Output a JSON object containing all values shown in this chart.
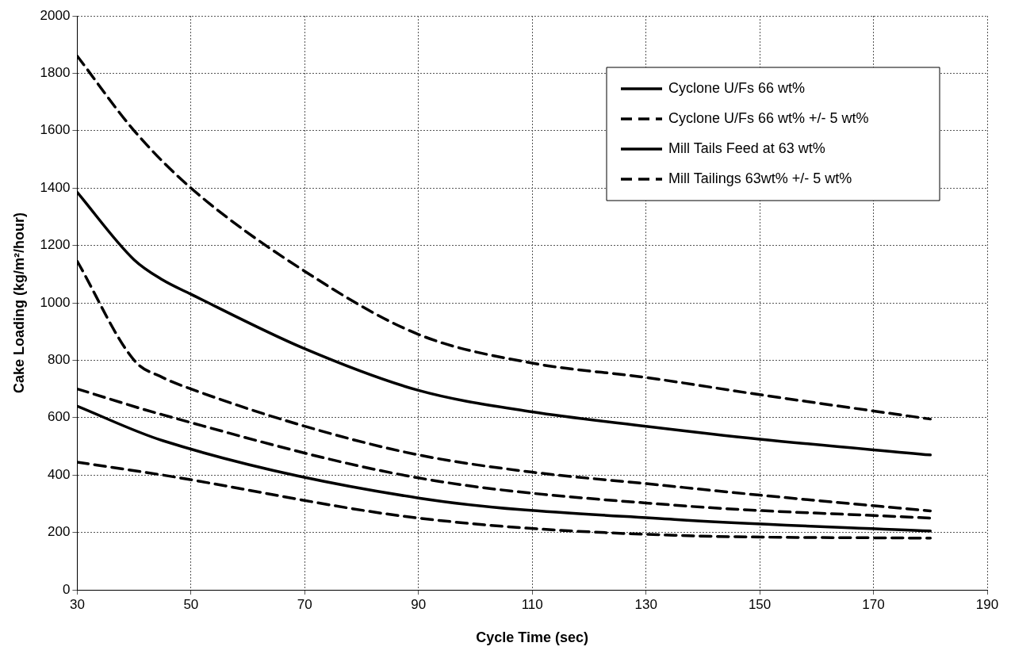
{
  "chart_data": {
    "type": "line",
    "xlabel": "Cycle Time (sec)",
    "ylabel": "Cake Loading (kg/m²/hour)",
    "xlim": [
      30,
      190
    ],
    "xticks": [
      30,
      50,
      70,
      90,
      110,
      130,
      150,
      170,
      190
    ],
    "ylim": [
      0,
      2000
    ],
    "yticks": [
      0,
      200,
      400,
      600,
      800,
      1000,
      1200,
      1400,
      1600,
      1800,
      2000
    ],
    "grid": true,
    "legend": "top right",
    "marker": "none",
    "series": [
      {
        "name": "Cyclone U/Fs 66 wt%",
        "color": "#000000",
        "line_style": "solid",
        "x": [
          30,
          40,
          45,
          50,
          70,
          90,
          110,
          130,
          150,
          180
        ],
        "values": [
          1385,
          1150,
          1080,
          1030,
          840,
          695,
          620,
          570,
          525,
          470
        ]
      },
      {
        "name": "Cyclone U/Fs 66 wt% +/- 5 wt%",
        "color": "#000000",
        "line_style": "dashed",
        "x": [
          30,
          40,
          50,
          70,
          90,
          110,
          130,
          150,
          180
        ],
        "values": [
          1860,
          1600,
          1400,
          1110,
          890,
          790,
          740,
          680,
          595
        ]
      },
      {
        "color": "#000000",
        "line_style": "dashed",
        "x": [
          30,
          40,
          45,
          50,
          70,
          90,
          110,
          130,
          150,
          180
        ],
        "values": [
          1145,
          800,
          740,
          700,
          570,
          470,
          410,
          370,
          330,
          275
        ]
      },
      {
        "name": "Mill Tails Feed at 63 wt%",
        "color": "#000000",
        "line_style": "solid",
        "x": [
          30,
          45,
          90,
          135,
          180
        ],
        "values": [
          640,
          520,
          320,
          245,
          205
        ]
      },
      {
        "name": "Mill Tailings 63wt% +/- 5 wt%",
        "color": "#000000",
        "line_style": "dashed",
        "x": [
          30,
          45,
          90,
          135,
          180
        ],
        "values": [
          700,
          610,
          390,
          295,
          250
        ]
      },
      {
        "color": "#000000",
        "line_style": "dashed",
        "x": [
          30,
          45,
          90,
          135,
          180
        ],
        "values": [
          445,
          400,
          250,
          190,
          180
        ]
      }
    ]
  }
}
